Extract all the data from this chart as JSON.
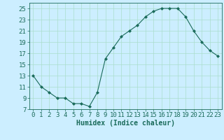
{
  "x": [
    0,
    1,
    2,
    3,
    4,
    5,
    6,
    7,
    8,
    9,
    10,
    11,
    12,
    13,
    14,
    15,
    16,
    17,
    18,
    19,
    20,
    21,
    22,
    23
  ],
  "y": [
    13,
    11,
    10,
    9,
    9,
    8,
    8,
    7.5,
    10,
    16,
    18,
    20,
    21,
    22,
    23.5,
    24.5,
    25,
    25,
    25,
    23.5,
    21,
    19,
    17.5,
    16.5
  ],
  "line_color": "#1a6b5a",
  "marker": "D",
  "marker_size": 2.0,
  "bg_color": "#cceeff",
  "grid_color": "#aaddcc",
  "xlabel": "Humidex (Indice chaleur)",
  "xlabel_fontsize": 7,
  "xlim": [
    -0.5,
    23.5
  ],
  "ylim": [
    7,
    26
  ],
  "yticks": [
    7,
    9,
    11,
    13,
    15,
    17,
    19,
    21,
    23,
    25
  ],
  "xticks": [
    0,
    1,
    2,
    3,
    4,
    5,
    6,
    7,
    8,
    9,
    10,
    11,
    12,
    13,
    14,
    15,
    16,
    17,
    18,
    19,
    20,
    21,
    22,
    23
  ],
  "tick_fontsize": 6.5
}
